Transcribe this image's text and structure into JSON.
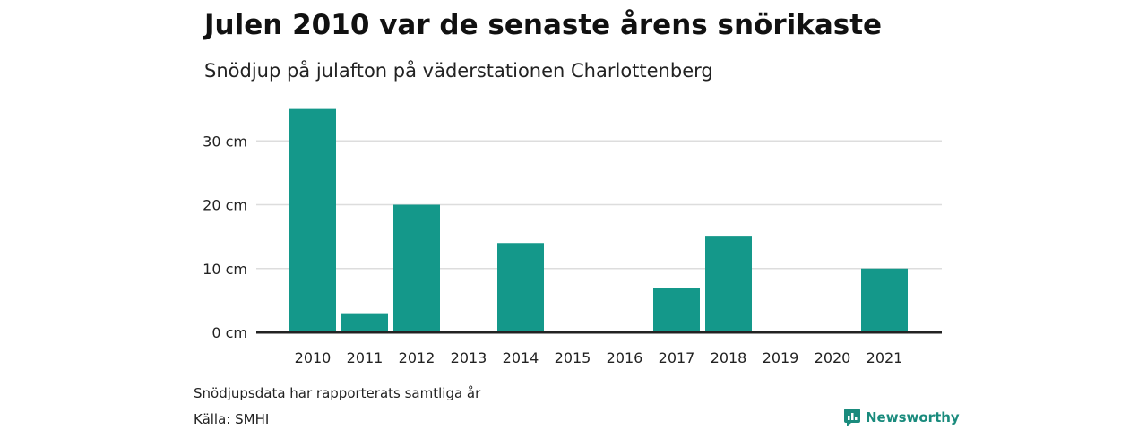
{
  "header": {
    "title": "Julen 2010 var de senaste årens snörikaste",
    "subtitle": "Snödjup på julafton på väderstationen Charlottenberg"
  },
  "footer": {
    "note": "Snödjupsdata har rapporterats samtliga år",
    "source": "Källa: SMHI",
    "brand": "Newsworthy",
    "brand_icon": "newsworthy-logo-icon"
  },
  "colors": {
    "bar": "#14988a",
    "grid": "#dddddd",
    "baseline": "#222222",
    "brand": "#1a8b7d"
  },
  "chart_data": {
    "type": "bar",
    "categories": [
      "2010",
      "2011",
      "2012",
      "2013",
      "2014",
      "2015",
      "2016",
      "2017",
      "2018",
      "2019",
      "2020",
      "2021"
    ],
    "values": [
      35,
      3,
      20,
      0,
      14,
      0,
      0,
      7,
      15,
      0,
      0,
      10
    ],
    "ylim": [
      0,
      35
    ],
    "yticks": [
      0,
      10,
      20,
      30
    ],
    "ytick_labels": [
      "0 cm",
      "10 cm",
      "20 cm",
      "30 cm"
    ],
    "grid": true,
    "legend": "none"
  }
}
